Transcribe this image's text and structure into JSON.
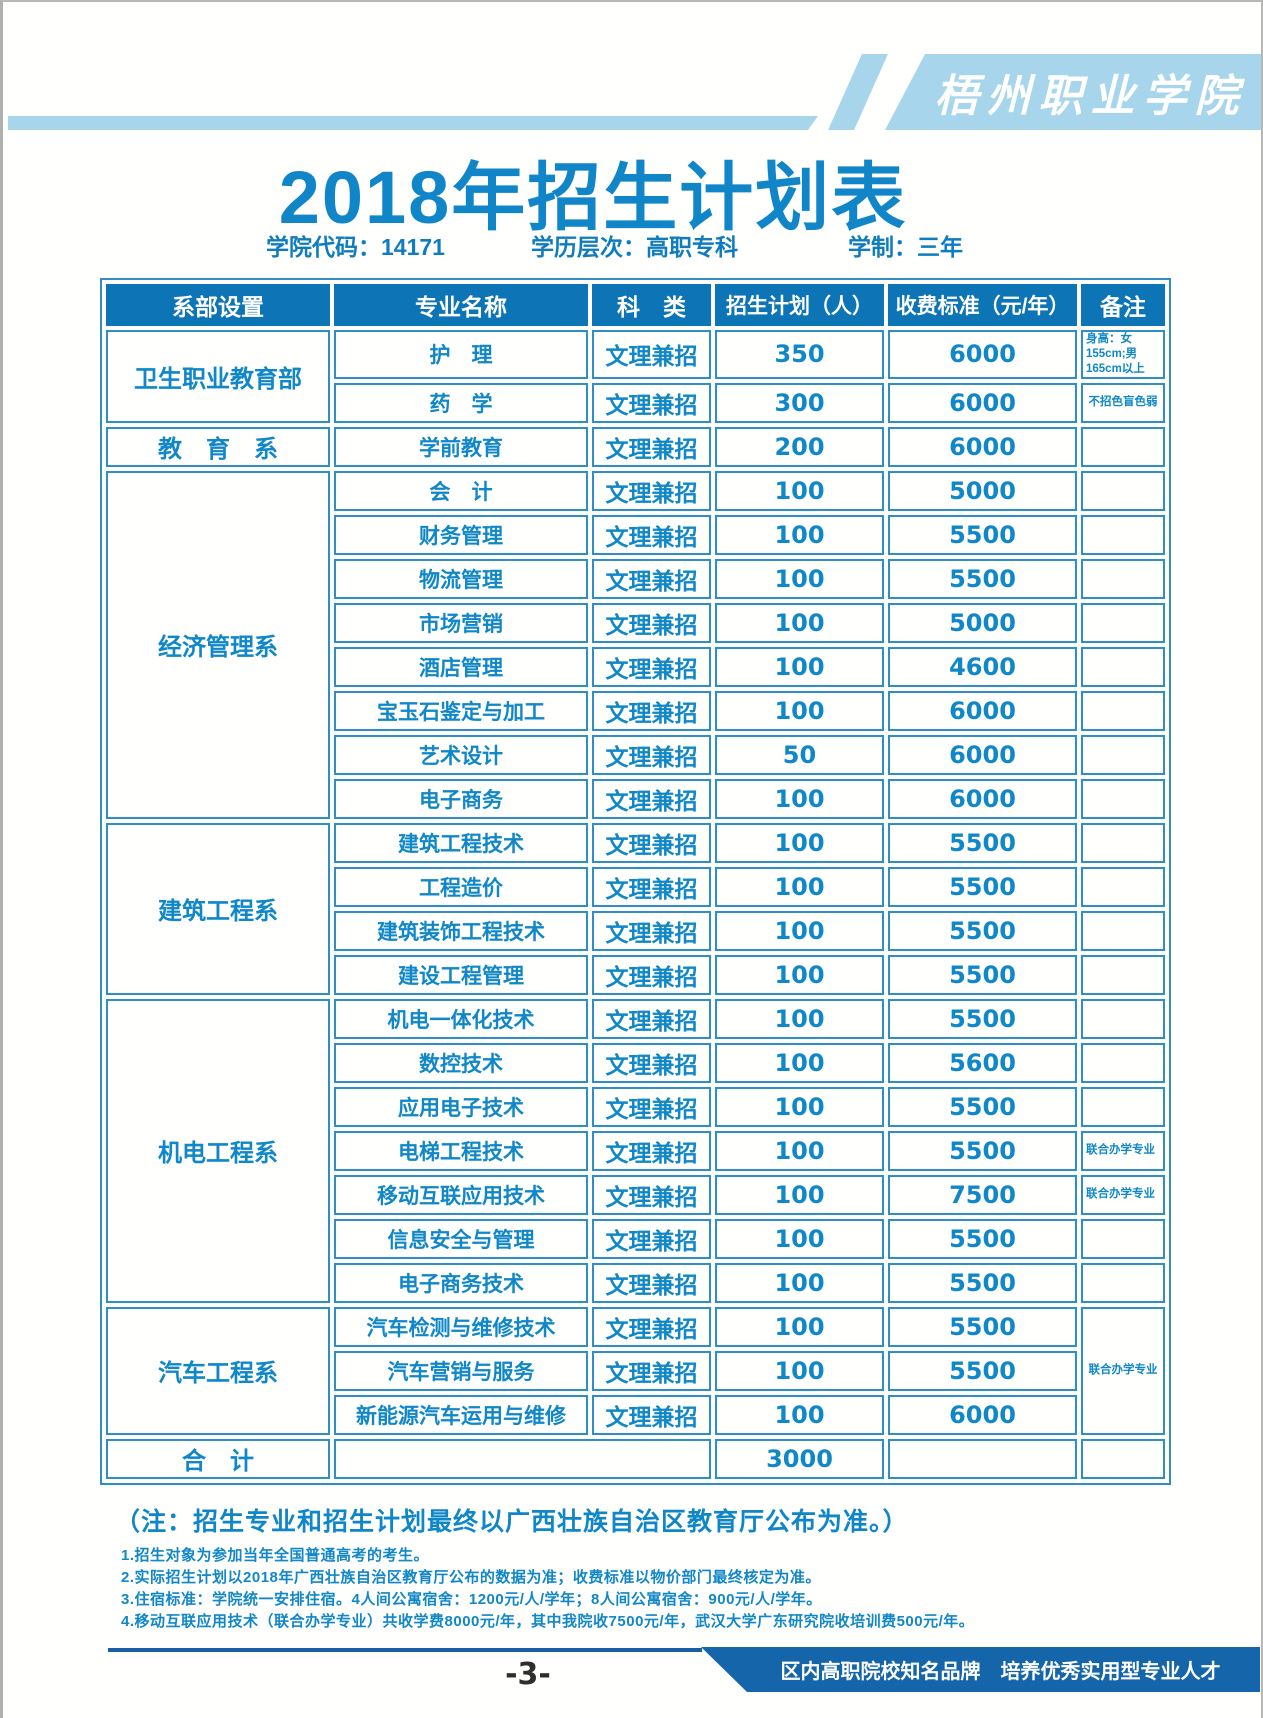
{
  "page": {
    "logo_text": "梧州职业学院",
    "title": "2018年招生计划表",
    "meta": {
      "code": "学院代码：14171",
      "level": "学历层次：高职专科",
      "duration": "学制：三年"
    }
  },
  "table": {
    "headers": [
      "系部设置",
      "专业名称",
      "科　类",
      "招生计划（人）",
      "收费标准（元/年）",
      "备注"
    ],
    "groups": [
      {
        "department": "卫生职业教育部",
        "rows": [
          {
            "major": "护　理",
            "category": "文理兼招",
            "plan": "350",
            "fee": "6000",
            "remark": "身高：女155cm;男165cm以上"
          },
          {
            "major": "药　学",
            "category": "文理兼招",
            "plan": "300",
            "fee": "6000",
            "remark": "不招色盲色弱",
            "remark_center": true
          }
        ]
      },
      {
        "department": "教　育　系",
        "rows": [
          {
            "major": "学前教育",
            "category": "文理兼招",
            "plan": "200",
            "fee": "6000",
            "remark": ""
          }
        ]
      },
      {
        "department": "经济管理系",
        "rows": [
          {
            "major": "会　计",
            "category": "文理兼招",
            "plan": "100",
            "fee": "5000",
            "remark": ""
          },
          {
            "major": "财务管理",
            "category": "文理兼招",
            "plan": "100",
            "fee": "5500",
            "remark": ""
          },
          {
            "major": "物流管理",
            "category": "文理兼招",
            "plan": "100",
            "fee": "5500",
            "remark": ""
          },
          {
            "major": "市场营销",
            "category": "文理兼招",
            "plan": "100",
            "fee": "5000",
            "remark": ""
          },
          {
            "major": "酒店管理",
            "category": "文理兼招",
            "plan": "100",
            "fee": "4600",
            "remark": ""
          },
          {
            "major": "宝玉石鉴定与加工",
            "category": "文理兼招",
            "plan": "100",
            "fee": "6000",
            "remark": ""
          },
          {
            "major": "艺术设计",
            "category": "文理兼招",
            "plan": "50",
            "fee": "6000",
            "remark": ""
          },
          {
            "major": "电子商务",
            "category": "文理兼招",
            "plan": "100",
            "fee": "6000",
            "remark": ""
          }
        ]
      },
      {
        "department": "建筑工程系",
        "rows": [
          {
            "major": "建筑工程技术",
            "category": "文理兼招",
            "plan": "100",
            "fee": "5500",
            "remark": ""
          },
          {
            "major": "工程造价",
            "category": "文理兼招",
            "plan": "100",
            "fee": "5500",
            "remark": ""
          },
          {
            "major": "建筑装饰工程技术",
            "category": "文理兼招",
            "plan": "100",
            "fee": "5500",
            "remark": ""
          },
          {
            "major": "建设工程管理",
            "category": "文理兼招",
            "plan": "100",
            "fee": "5500",
            "remark": ""
          }
        ]
      },
      {
        "department": "机电工程系",
        "rows": [
          {
            "major": "机电一体化技术",
            "category": "文理兼招",
            "plan": "100",
            "fee": "5500",
            "remark": ""
          },
          {
            "major": "数控技术",
            "category": "文理兼招",
            "plan": "100",
            "fee": "5600",
            "remark": ""
          },
          {
            "major": "应用电子技术",
            "category": "文理兼招",
            "plan": "100",
            "fee": "5500",
            "remark": ""
          },
          {
            "major": "电梯工程技术",
            "category": "文理兼招",
            "plan": "100",
            "fee": "5500",
            "remark": "联合办学专业"
          },
          {
            "major": "移动互联应用技术",
            "category": "文理兼招",
            "plan": "100",
            "fee": "7500",
            "remark": "联合办学专业"
          },
          {
            "major": "信息安全与管理",
            "category": "文理兼招",
            "plan": "100",
            "fee": "5500",
            "remark": ""
          },
          {
            "major": "电子商务技术",
            "category": "文理兼招",
            "plan": "100",
            "fee": "5500",
            "remark": ""
          }
        ]
      },
      {
        "department": "汽车工程系",
        "group_remark": "联合办学专业",
        "rows": [
          {
            "major": "汽车检测与维修技术",
            "category": "文理兼招",
            "plan": "100",
            "fee": "5500"
          },
          {
            "major": "汽车营销与服务",
            "category": "文理兼招",
            "plan": "100",
            "fee": "5500"
          },
          {
            "major": "新能源汽车运用与维修",
            "category": "文理兼招",
            "plan": "100",
            "fee": "6000"
          }
        ]
      }
    ],
    "total": {
      "label": "合　计",
      "plan": "3000"
    }
  },
  "notes": {
    "main": "（注：招生专业和招生计划最终以广西壮族自治区教育厅公布为准。）",
    "items": [
      "1.招生对象为参加当年全国普通高考的考生。",
      "2.实际招生计划以2018年广西壮族自治区教育厅公布的数据为准；收费标准以物价部门最终核定为准。",
      "3.住宿标准：学院统一安排住宿。4人间公寓宿舍：1200元/人/学年；8人间公寓宿舍：900元/人/学年。",
      "4.移动互联应用技术（联合办学专业）共收学费8000元/年，其中我院收7500元/年，武汉大学广东研究院收培训费500元/年。"
    ]
  },
  "footer": {
    "page_number": "-3-",
    "slogan": "区内高职院校知名品牌　培养优秀实用型专业人才"
  },
  "colors": {
    "brand_blue": "#1086c8",
    "table_header_bg": "#0d74b6",
    "table_border_blue": "#2f8ec6",
    "band_light_blue": "#a7d5ec",
    "footer_banner_blue": "#1565aa",
    "footer_line_blue": "#1a5ea6",
    "page_number_color": "#2e2e2e"
  }
}
